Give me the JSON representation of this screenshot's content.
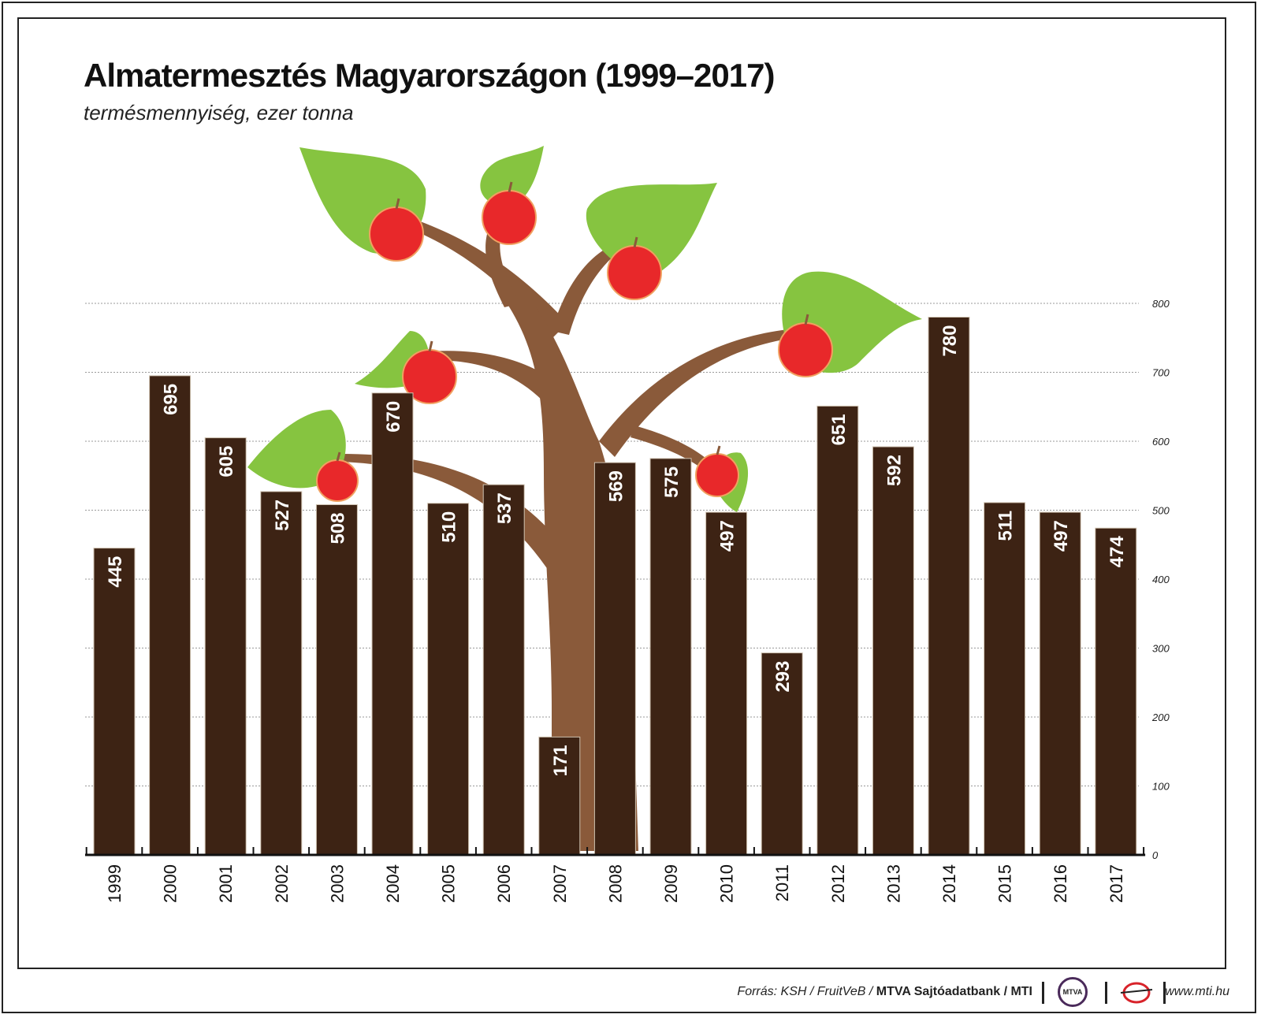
{
  "title": "Almatermesztés Magyarországon (1999–2017)",
  "subtitle": "termésmennyiség, ezer tonna",
  "footer": {
    "source_prefix": "Forrás: KSH / FruitVeB / ",
    "source_bold": "MTVA Sajtóadatbank / MTI",
    "logo_text": "MTVA",
    "url": "www.mti.hu"
  },
  "colors": {
    "bar": "#3d2314",
    "trunk": "#8a5a3a",
    "leaf": "#86c440",
    "apple": "#e8282a",
    "gridline": "#999999"
  },
  "icons": [
    "tree-illustration",
    "apple-icon",
    "mtva-logo",
    "mti-logo"
  ],
  "chart_data": {
    "type": "bar",
    "categories": [
      "1999",
      "2000",
      "2001",
      "2002",
      "2003",
      "2004",
      "2005",
      "2006",
      "2007",
      "2008",
      "2009",
      "2010",
      "2011",
      "2012",
      "2013",
      "2014",
      "2015",
      "2016",
      "2017"
    ],
    "values": [
      445,
      695,
      605,
      527,
      508,
      670,
      510,
      537,
      171,
      569,
      575,
      497,
      293,
      651,
      592,
      780,
      511,
      497,
      474
    ],
    "ylim": [
      0,
      800
    ],
    "yticks": [
      0,
      100,
      200,
      300,
      400,
      500,
      600,
      700,
      800
    ],
    "y_axis_side": "right",
    "grid": true,
    "data_labels": true
  }
}
